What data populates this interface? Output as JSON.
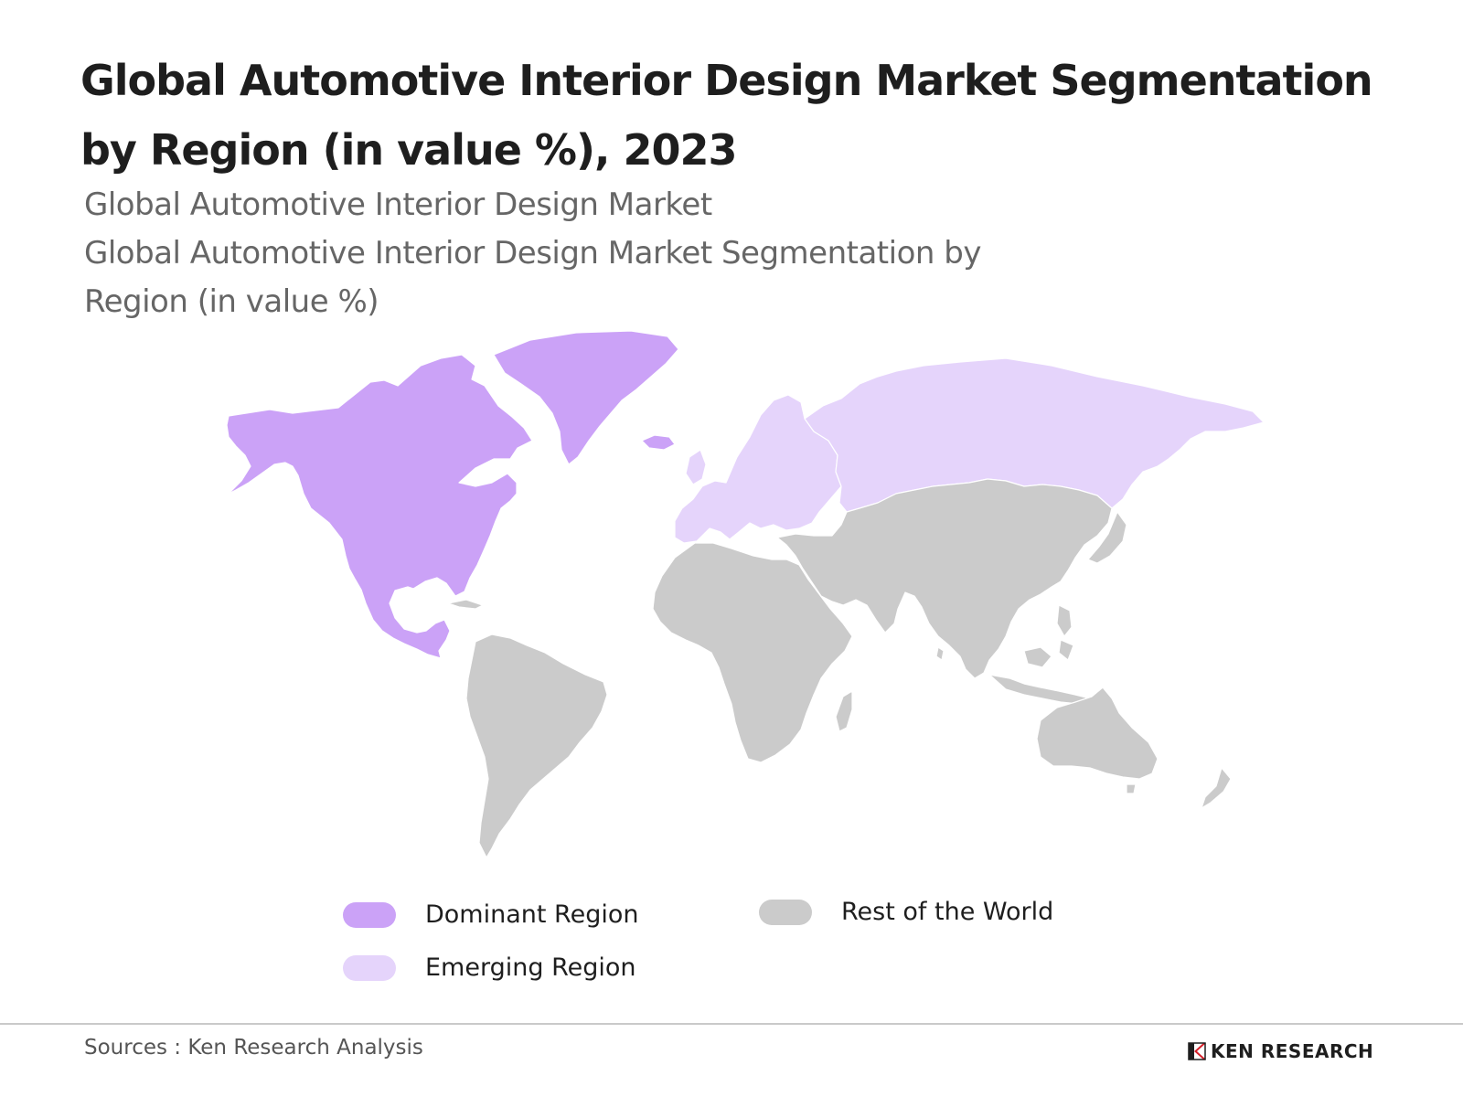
{
  "header": {
    "title": "Global Automotive Interior Design Market Segmentation by Region (in value %), 2023",
    "subtitle_line1": "Global Automotive Interior Design Market",
    "subtitle_line2": "Global Automotive Interior Design Market Segmentation by",
    "subtitle_line3": "Region (in value %)"
  },
  "map": {
    "regions": [
      {
        "name": "North America",
        "category": "dominant"
      },
      {
        "name": "Greenland",
        "category": "dominant"
      },
      {
        "name": "Europe",
        "category": "emerging"
      },
      {
        "name": "Russia",
        "category": "emerging"
      },
      {
        "name": "Asia",
        "category": "rest"
      },
      {
        "name": "Africa",
        "category": "rest"
      },
      {
        "name": "South America",
        "category": "rest"
      },
      {
        "name": "Oceania",
        "category": "rest"
      }
    ]
  },
  "legend": {
    "dominant": {
      "label": "Dominant Region",
      "color": "#cba2f7"
    },
    "emerging": {
      "label": "Emerging Region",
      "color": "#e5d4fb"
    },
    "rest": {
      "label": "Rest of the World",
      "color": "#cbcbcb"
    }
  },
  "footer": {
    "source": "Sources : Ken Research Analysis",
    "brand": "KEN RESEARCH"
  }
}
